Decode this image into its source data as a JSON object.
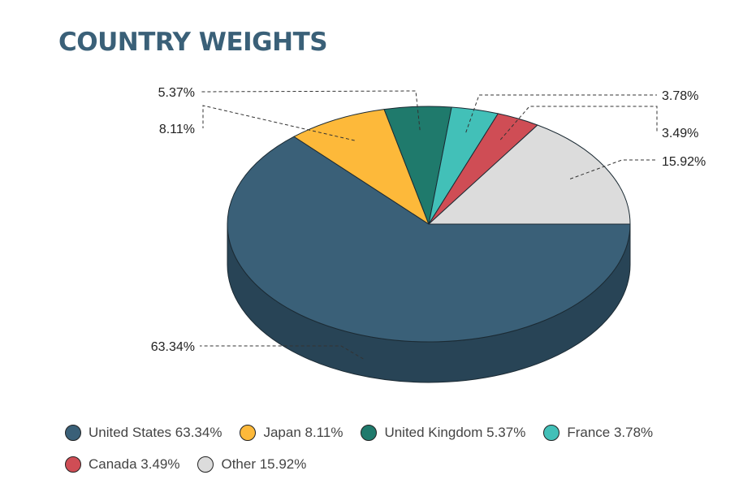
{
  "chart_data": {
    "type": "pie",
    "title": "COUNTRY WEIGHTS",
    "slices": [
      {
        "name": "United States",
        "value": 63.34,
        "label": "63.34%",
        "color": "#3a6078",
        "side_color": "#284456",
        "legend": "United States 63.34%"
      },
      {
        "name": "Japan",
        "value": 8.11,
        "label": "8.11%",
        "color": "#fdb93a",
        "side_color": "#b88428",
        "legend": "Japan 8.11%"
      },
      {
        "name": "United Kingdom",
        "value": 5.37,
        "label": "5.37%",
        "color": "#1f7a6c",
        "side_color": "#15574c",
        "legend": "United Kingdom 5.37%"
      },
      {
        "name": "France",
        "value": 3.78,
        "label": "3.78%",
        "color": "#42c0b8",
        "side_color": "#2e8a84",
        "legend": "France 3.78%"
      },
      {
        "name": "Canada",
        "value": 3.49,
        "label": "3.49%",
        "color": "#cf4d55",
        "side_color": "#94363c",
        "legend": "Canada 3.49%"
      },
      {
        "name": "Other",
        "value": 15.92,
        "label": "15.92%",
        "color": "#dcdcdc",
        "side_color": "#a8a8a8",
        "legend": "Other 15.92%"
      }
    ],
    "legend_position": "bottom",
    "style": "3d"
  }
}
